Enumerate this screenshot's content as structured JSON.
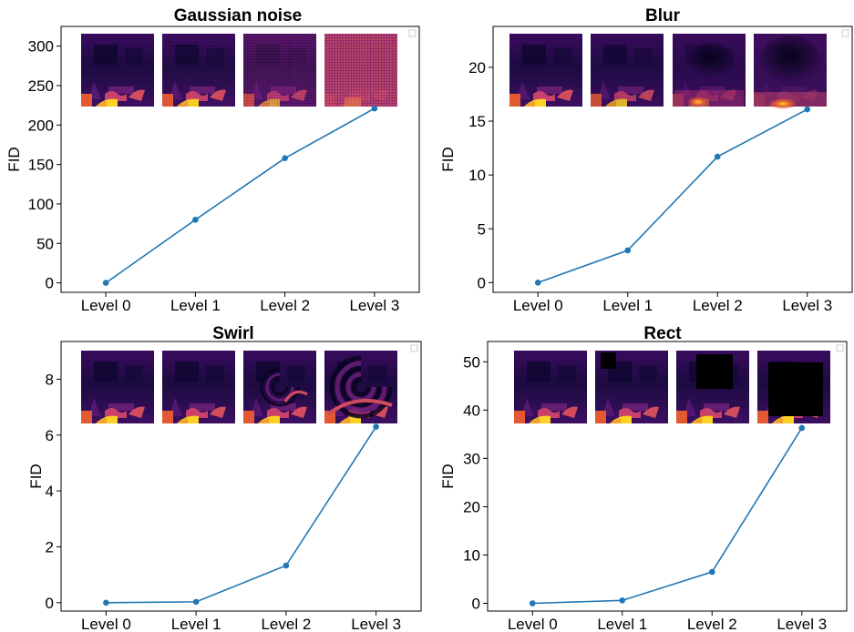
{
  "colors": {
    "line": "#1f77b4",
    "inferno_dark": "#1b0b40",
    "inferno_mid": "#4a0c6b",
    "inferno_purple": "#6a176e",
    "inferno_orange": "#e35932",
    "inferno_yellow": "#fcd225"
  },
  "chart_data": [
    {
      "type": "line",
      "title": "Gaussian noise",
      "ylabel": "FID",
      "categories": [
        "Level 0",
        "Level 1",
        "Level 2",
        "Level 3"
      ],
      "values": [
        0,
        80,
        158,
        221
      ],
      "ylim": [
        -12,
        325
      ],
      "yticks": [
        0,
        50,
        100,
        150,
        200,
        250,
        300
      ],
      "thumbnails": [
        "clean",
        "noise-light",
        "noise-medium",
        "noise-heavy"
      ],
      "legend": "top-right (empty)"
    },
    {
      "type": "line",
      "title": "Blur",
      "ylabel": "FID",
      "categories": [
        "Level 0",
        "Level 1",
        "Level 2",
        "Level 3"
      ],
      "values": [
        0,
        3.0,
        11.7,
        16.1
      ],
      "ylim": [
        -0.9,
        23.8
      ],
      "yticks": [
        0,
        5,
        10,
        15,
        20
      ],
      "thumbnails": [
        "clean",
        "blur-light",
        "blur-medium",
        "blur-heavy"
      ],
      "legend": "top-right (empty)"
    },
    {
      "type": "line",
      "title": "Swirl",
      "ylabel": "FID",
      "categories": [
        "Level 0",
        "Level 1",
        "Level 2",
        "Level 3"
      ],
      "values": [
        0,
        0.03,
        1.33,
        6.3
      ],
      "ylim": [
        -0.3,
        9.35
      ],
      "yticks": [
        0,
        2,
        4,
        6,
        8
      ],
      "thumbnails": [
        "clean",
        "swirl-light",
        "swirl-medium",
        "swirl-heavy"
      ],
      "legend": "top-right (empty)"
    },
    {
      "type": "line",
      "title": "Rect",
      "ylabel": "FID",
      "categories": [
        "Level 0",
        "Level 1",
        "Level 2",
        "Level 3"
      ],
      "values": [
        0,
        0.6,
        6.5,
        36.3
      ],
      "ylim": [
        -1.6,
        54.2
      ],
      "yticks": [
        0,
        10,
        20,
        30,
        40,
        50
      ],
      "thumbnails": [
        "clean",
        "rect-small",
        "rect-medium",
        "rect-large"
      ],
      "legend": "top-right (empty)"
    }
  ]
}
